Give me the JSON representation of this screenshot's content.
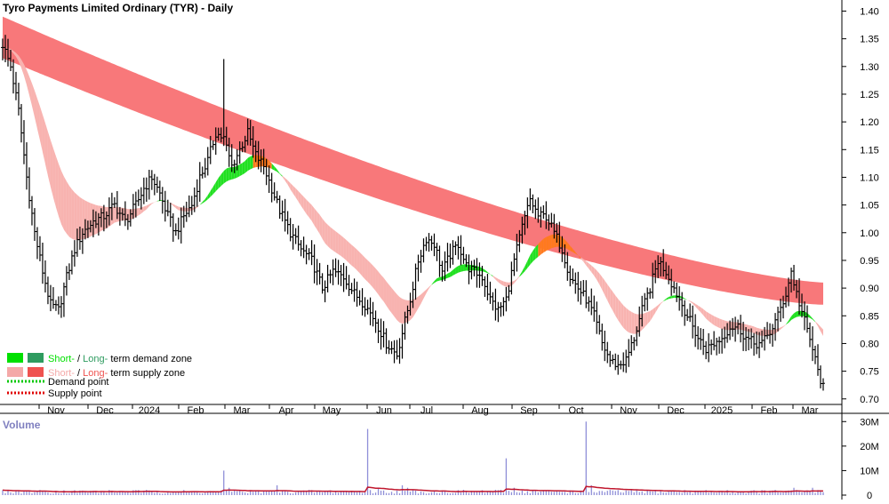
{
  "chart_data": [
    {
      "type": "candlestick",
      "title": "Tyro Payments Limited Ordinary (TYR) - Daily",
      "ylim": [
        0.69,
        1.42
      ],
      "yticks": [
        "1.40",
        "1.35",
        "1.30",
        "1.25",
        "1.20",
        "1.15",
        "1.10",
        "1.05",
        "1.00",
        "0.95",
        "0.90",
        "0.85",
        "0.80",
        "0.75",
        "0.70"
      ],
      "months": [
        "Nov",
        "Dec",
        "2024",
        "Feb",
        "Mar",
        "Apr",
        "May",
        "Jun",
        "Jul",
        "Aug",
        "Sep",
        "Oct",
        "Nov",
        "Dec",
        "2025",
        "Feb",
        "Mar"
      ],
      "close_anchors": [
        [
          0,
          1.34
        ],
        [
          3,
          1.3
        ],
        [
          6,
          1.22
        ],
        [
          9,
          1.1
        ],
        [
          12,
          1.0
        ],
        [
          15,
          0.93
        ],
        [
          18,
          0.87
        ],
        [
          21,
          0.86
        ],
        [
          24,
          0.92
        ],
        [
          27,
          0.97
        ],
        [
          30,
          1.0
        ],
        [
          34,
          1.02
        ],
        [
          38,
          1.03
        ],
        [
          42,
          1.05
        ],
        [
          46,
          1.02
        ],
        [
          50,
          1.05
        ],
        [
          53,
          1.08
        ],
        [
          56,
          1.1
        ],
        [
          59,
          1.07
        ],
        [
          62,
          1.03
        ],
        [
          65,
          1.0
        ],
        [
          68,
          1.03
        ],
        [
          71,
          1.05
        ],
        [
          74,
          1.1
        ],
        [
          77,
          1.13
        ],
        [
          80,
          1.18
        ],
        [
          83,
          1.17
        ],
        [
          86,
          1.12
        ],
        [
          89,
          1.15
        ],
        [
          92,
          1.18
        ],
        [
          95,
          1.14
        ],
        [
          98,
          1.12
        ],
        [
          101,
          1.08
        ],
        [
          104,
          1.04
        ],
        [
          108,
          1.0
        ],
        [
          112,
          0.97
        ],
        [
          116,
          0.95
        ],
        [
          120,
          0.9
        ],
        [
          124,
          0.93
        ],
        [
          128,
          0.92
        ],
        [
          132,
          0.89
        ],
        [
          136,
          0.87
        ],
        [
          140,
          0.84
        ],
        [
          144,
          0.8
        ],
        [
          148,
          0.78
        ],
        [
          150,
          0.82
        ],
        [
          153,
          0.88
        ],
        [
          156,
          0.95
        ],
        [
          159,
          0.99
        ],
        [
          162,
          0.98
        ],
        [
          165,
          0.93
        ],
        [
          168,
          0.96
        ],
        [
          171,
          0.98
        ],
        [
          174,
          0.94
        ],
        [
          177,
          0.93
        ],
        [
          180,
          0.92
        ],
        [
          183,
          0.88
        ],
        [
          186,
          0.86
        ],
        [
          189,
          0.88
        ],
        [
          192,
          0.95
        ],
        [
          195,
          1.01
        ],
        [
          198,
          1.06
        ],
        [
          201,
          1.03
        ],
        [
          204,
          1.03
        ],
        [
          207,
          1.0
        ],
        [
          210,
          0.97
        ],
        [
          213,
          0.92
        ],
        [
          216,
          0.9
        ],
        [
          219,
          0.88
        ],
        [
          222,
          0.85
        ],
        [
          225,
          0.8
        ],
        [
          228,
          0.77
        ],
        [
          231,
          0.76
        ],
        [
          234,
          0.77
        ],
        [
          237,
          0.81
        ],
        [
          240,
          0.86
        ],
        [
          243,
          0.9
        ],
        [
          246,
          0.95
        ],
        [
          249,
          0.93
        ],
        [
          252,
          0.9
        ],
        [
          255,
          0.87
        ],
        [
          258,
          0.84
        ],
        [
          261,
          0.81
        ],
        [
          264,
          0.79
        ],
        [
          267,
          0.8
        ],
        [
          270,
          0.81
        ],
        [
          273,
          0.83
        ],
        [
          276,
          0.83
        ],
        [
          279,
          0.81
        ],
        [
          282,
          0.8
        ],
        [
          285,
          0.8
        ],
        [
          288,
          0.82
        ],
        [
          291,
          0.85
        ],
        [
          294,
          0.89
        ],
        [
          296,
          0.93
        ],
        [
          298,
          0.89
        ],
        [
          301,
          0.84
        ],
        [
          304,
          0.79
        ],
        [
          306,
          0.75
        ],
        [
          308,
          0.72
        ]
      ],
      "volume": {
        "label": "Volume",
        "ylim": [
          0,
          33
        ],
        "yticks": [
          "30M",
          "20M",
          "10M",
          "0"
        ],
        "spikes_millions": [
          [
            83,
            10
          ],
          [
            85,
            3
          ],
          [
            87,
            2
          ],
          [
            103,
            4
          ],
          [
            137,
            27
          ],
          [
            141,
            3
          ],
          [
            150,
            4
          ],
          [
            152,
            3
          ],
          [
            189,
            15
          ],
          [
            192,
            3
          ],
          [
            219,
            30
          ],
          [
            221,
            4
          ],
          [
            297,
            3
          ],
          [
            304,
            3
          ]
        ]
      },
      "legend": [
        {
          "label_a": "Short-",
          "label_mid": " / ",
          "label_b": "Long-",
          "label_end": "term demand zone",
          "color_a": "#00e000",
          "color_b": "#2e9b5f"
        },
        {
          "label_a": "Short-",
          "label_mid": " / ",
          "label_b": "Long-",
          "label_end": "term supply zone",
          "color_a": "#f4a9a8",
          "color_b": "#ef5350"
        },
        {
          "label": "Demand point",
          "color": "#00c800"
        },
        {
          "label": "Supply point",
          "color": "#e00000"
        }
      ],
      "colors": {
        "long_supply": "#f8787a",
        "short_supply": "#f8b3b0",
        "demand": "#22e022",
        "overlap": "#ff7a1e",
        "price": "#000000",
        "volume_bar": "#8f8fd8",
        "volume_avg": "#c0162d",
        "axis_text": "#000000",
        "volume_label": "#8080c0"
      }
    }
  ]
}
